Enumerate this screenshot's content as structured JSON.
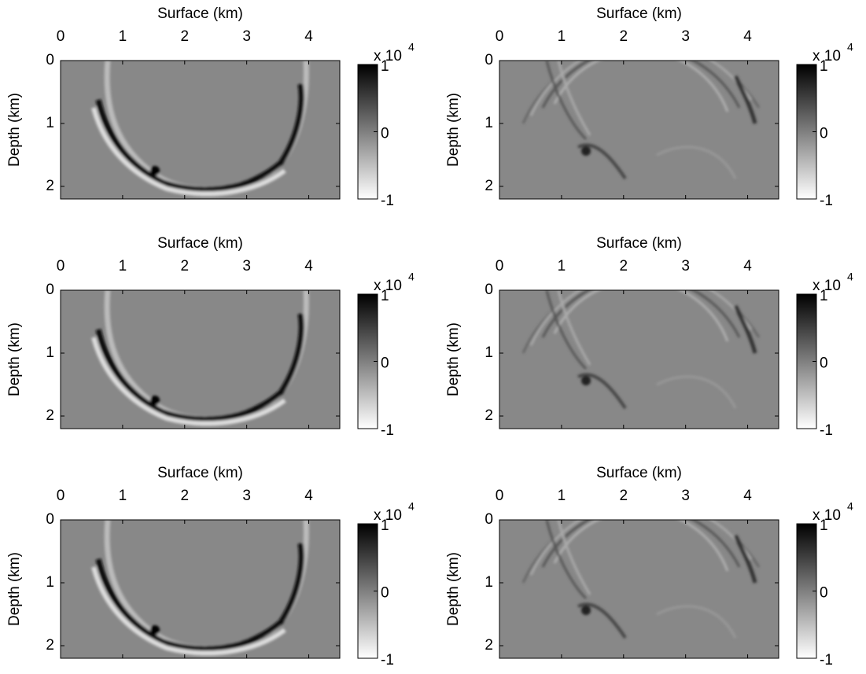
{
  "chart_data": [
    {
      "type": "heatmap",
      "xlabel": "Surface (km)",
      "ylabel": "Depth (km)",
      "xlim": [
        0,
        4.5
      ],
      "ylim": [
        0,
        2.2
      ],
      "xticks": [
        0,
        1,
        2,
        3,
        4
      ],
      "yticks": [
        0,
        1,
        2
      ],
      "colorbar": {
        "lim": [
          -1,
          1
        ],
        "ticks": [
          -1,
          0,
          1
        ],
        "multiplier": "x 10",
        "exponent": "4"
      }
    },
    {
      "type": "heatmap",
      "xlabel": "Surface (km)",
      "ylabel": "Depth (km)",
      "xlim": [
        0,
        4.5
      ],
      "ylim": [
        0,
        2.2
      ],
      "xticks": [
        0,
        1,
        2,
        3,
        4
      ],
      "yticks": [
        0,
        1,
        2
      ],
      "colorbar": {
        "lim": [
          -1,
          1
        ],
        "ticks": [
          -1,
          0,
          1
        ],
        "multiplier": "x 10",
        "exponent": "4"
      }
    },
    {
      "type": "heatmap",
      "xlabel": "Surface (km)",
      "ylabel": "Depth (km)",
      "xlim": [
        0,
        4.5
      ],
      "ylim": [
        0,
        2.2
      ],
      "xticks": [
        0,
        1,
        2,
        3,
        4
      ],
      "yticks": [
        0,
        1,
        2
      ],
      "colorbar": {
        "lim": [
          -1,
          1
        ],
        "ticks": [
          -1,
          0,
          1
        ],
        "multiplier": "x 10",
        "exponent": "4"
      }
    },
    {
      "type": "heatmap",
      "xlabel": "Surface (km)",
      "ylabel": "Depth (km)",
      "xlim": [
        0,
        4.5
      ],
      "ylim": [
        0,
        2.2
      ],
      "xticks": [
        0,
        1,
        2,
        3,
        4
      ],
      "yticks": [
        0,
        1,
        2
      ],
      "colorbar": {
        "lim": [
          -1,
          1
        ],
        "ticks": [
          -1,
          0,
          1
        ],
        "multiplier": "x 10",
        "exponent": "4"
      }
    },
    {
      "type": "heatmap",
      "xlabel": "Surface (km)",
      "ylabel": "Depth (km)",
      "xlim": [
        0,
        4.5
      ],
      "ylim": [
        0,
        2.2
      ],
      "xticks": [
        0,
        1,
        2,
        3,
        4
      ],
      "yticks": [
        0,
        1,
        2
      ],
      "colorbar": {
        "lim": [
          -1,
          1
        ],
        "ticks": [
          -1,
          0,
          1
        ],
        "multiplier": "x 10",
        "exponent": "4"
      }
    },
    {
      "type": "heatmap",
      "xlabel": "Surface (km)",
      "ylabel": "Depth (km)",
      "xlim": [
        0,
        4.5
      ],
      "ylim": [
        0,
        2.2
      ],
      "xticks": [
        0,
        1,
        2,
        3,
        4
      ],
      "yticks": [
        0,
        1,
        2
      ],
      "colorbar": {
        "lim": [
          -1,
          1
        ],
        "ticks": [
          -1,
          0,
          1
        ],
        "multiplier": "x 10",
        "exponent": "4"
      }
    }
  ]
}
